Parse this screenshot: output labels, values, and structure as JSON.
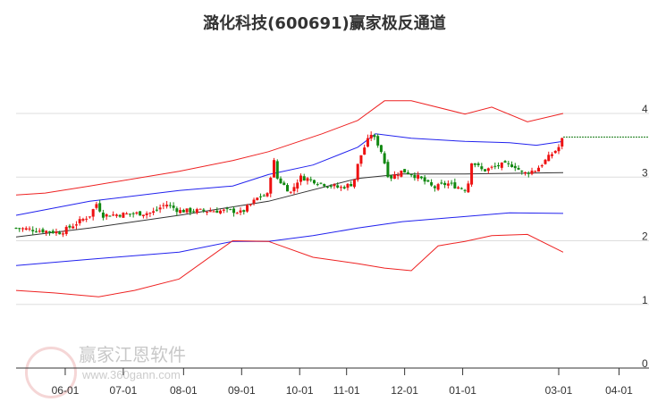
{
  "chart_data": {
    "type": "candlestick",
    "title": "潞化科技(600691)赢家极反通道",
    "watermark": {
      "name": "赢家江恩软件",
      "url": "www.360gann.com",
      "seal": "江赢恩家"
    },
    "ylim": [
      0,
      4
    ],
    "y_ticks": [
      "4",
      "3",
      "2",
      "1",
      "0"
    ],
    "y_tick_values": [
      4,
      3,
      2,
      1,
      0
    ],
    "x_ticks": [
      {
        "label": "06-01",
        "day": 22
      },
      {
        "label": "07-01",
        "day": 48
      },
      {
        "label": "08-01",
        "day": 75
      },
      {
        "label": "09-01",
        "day": 101
      },
      {
        "label": "10-01",
        "day": 127
      },
      {
        "label": "11-01",
        "day": 148
      },
      {
        "label": "12-01",
        "day": 174
      },
      {
        "label": "01-01",
        "day": 200
      },
      {
        "label": "03-01",
        "day": 243
      },
      {
        "label": "04-01",
        "day": 270
      }
    ],
    "day_range": [
      0,
      283
    ],
    "last_price": 3.63,
    "price_path": [
      [
        0,
        2.2
      ],
      [
        20,
        2.13
      ],
      [
        33,
        2.4
      ],
      [
        36,
        2.58
      ],
      [
        39,
        2.4
      ],
      [
        61,
        2.44
      ],
      [
        67,
        2.58
      ],
      [
        73,
        2.47
      ],
      [
        97,
        2.47
      ],
      [
        101,
        2.44
      ],
      [
        109,
        2.7
      ],
      [
        113,
        2.72
      ],
      [
        115,
        3.33
      ],
      [
        117,
        2.98
      ],
      [
        123,
        2.76
      ],
      [
        127,
        3.0
      ],
      [
        131,
        2.97
      ],
      [
        137,
        2.9
      ],
      [
        145,
        2.83
      ],
      [
        151,
        2.9
      ],
      [
        153,
        3.19
      ],
      [
        155,
        3.4
      ],
      [
        159,
        3.68
      ],
      [
        163,
        3.47
      ],
      [
        167,
        2.98
      ],
      [
        173,
        3.1
      ],
      [
        177,
        3.05
      ],
      [
        181,
        2.98
      ],
      [
        187,
        2.83
      ],
      [
        193,
        2.9
      ],
      [
        199,
        2.83
      ],
      [
        202,
        2.8
      ],
      [
        204,
        3.25
      ],
      [
        209,
        3.1
      ],
      [
        217,
        3.19
      ],
      [
        223,
        3.19
      ],
      [
        227,
        3.05
      ],
      [
        233,
        3.12
      ],
      [
        239,
        3.33
      ],
      [
        243,
        3.47
      ],
      [
        245,
        3.63
      ]
    ],
    "bands": [
      {
        "name": "middle",
        "color": "#333333",
        "points": [
          [
            0,
            2.06
          ],
          [
            33,
            2.2
          ],
          [
            73,
            2.4
          ],
          [
            113,
            2.62
          ],
          [
            153,
            2.98
          ],
          [
            173,
            3.05
          ],
          [
            201,
            3.05
          ],
          [
            245,
            3.07
          ]
        ]
      },
      {
        "name": "upper-blue",
        "color": "#2222ee",
        "points": [
          [
            0,
            2.4
          ],
          [
            33,
            2.62
          ],
          [
            73,
            2.79
          ],
          [
            97,
            2.86
          ],
          [
            113,
            3.04
          ],
          [
            133,
            3.19
          ],
          [
            153,
            3.47
          ],
          [
            161,
            3.68
          ],
          [
            177,
            3.61
          ],
          [
            201,
            3.56
          ],
          [
            221,
            3.54
          ],
          [
            233,
            3.5
          ],
          [
            245,
            3.56
          ]
        ]
      },
      {
        "name": "lower-blue",
        "color": "#2222ee",
        "points": [
          [
            0,
            1.61
          ],
          [
            33,
            1.71
          ],
          [
            73,
            1.82
          ],
          [
            97,
            1.99
          ],
          [
            113,
            1.99
          ],
          [
            133,
            2.08
          ],
          [
            153,
            2.2
          ],
          [
            173,
            2.3
          ],
          [
            201,
            2.38
          ],
          [
            221,
            2.44
          ],
          [
            245,
            2.43
          ]
        ]
      },
      {
        "name": "upper-red",
        "color": "#ee2222",
        "points": [
          [
            0,
            2.72
          ],
          [
            13,
            2.75
          ],
          [
            33,
            2.86
          ],
          [
            73,
            3.09
          ],
          [
            97,
            3.26
          ],
          [
            113,
            3.4
          ],
          [
            137,
            3.68
          ],
          [
            153,
            3.89
          ],
          [
            165,
            4.2
          ],
          [
            177,
            4.2
          ],
          [
            201,
            3.99
          ],
          [
            213,
            4.1
          ],
          [
            229,
            3.87
          ],
          [
            245,
            4.0
          ]
        ]
      },
      {
        "name": "lower-red",
        "color": "#ee2222",
        "points": [
          [
            0,
            1.22
          ],
          [
            17,
            1.18
          ],
          [
            37,
            1.12
          ],
          [
            53,
            1.22
          ],
          [
            73,
            1.4
          ],
          [
            97,
            2.0
          ],
          [
            113,
            1.99
          ],
          [
            133,
            1.74
          ],
          [
            153,
            1.64
          ],
          [
            165,
            1.57
          ],
          [
            177,
            1.53
          ],
          [
            189,
            1.92
          ],
          [
            201,
            1.99
          ],
          [
            213,
            2.08
          ],
          [
            229,
            2.1
          ],
          [
            245,
            1.82
          ]
        ]
      }
    ]
  }
}
